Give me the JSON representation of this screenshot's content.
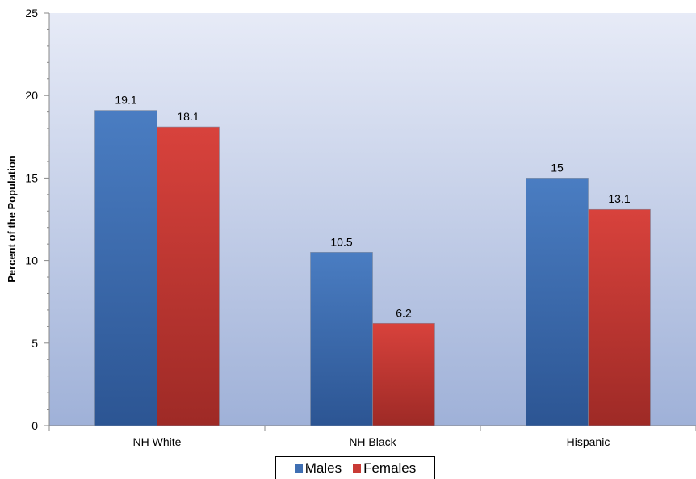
{
  "chart_data": {
    "type": "bar",
    "categories": [
      "NH White",
      "NH Black",
      "Hispanic"
    ],
    "series": [
      {
        "name": "Males",
        "values": [
          19.1,
          10.5,
          15
        ],
        "labels": [
          "19.1",
          "10.5",
          "15"
        ],
        "color": "#3f6fb3"
      },
      {
        "name": "Females",
        "values": [
          18.1,
          6.2,
          13.1
        ],
        "labels": [
          "18.1",
          "6.2",
          "13.1"
        ],
        "color": "#c93a35"
      }
    ],
    "ylabel": "Percent of the Population",
    "xlabel": "",
    "ylim": [
      0,
      25
    ],
    "yticks": [
      "0",
      "5",
      "10",
      "15",
      "20",
      "25"
    ],
    "grid": false,
    "legend_position": "bottom"
  }
}
